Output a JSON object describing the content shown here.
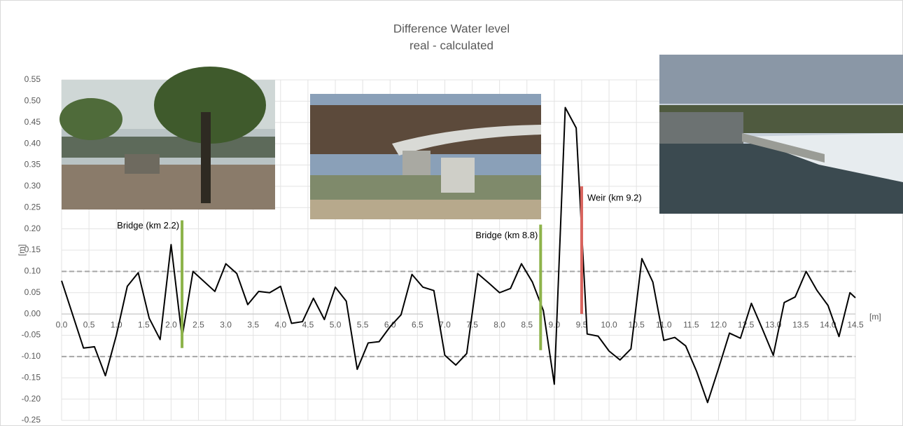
{
  "chart_data": {
    "type": "line",
    "title": "Difference Water level",
    "subtitle": "real - calculated",
    "y_label": "[m]",
    "x_label": "[m]",
    "xlim": [
      0,
      14.5
    ],
    "ylim": [
      -0.25,
      0.55
    ],
    "grid": true,
    "xticks": [
      {
        "value": 0,
        "label": "0.0"
      },
      0.5,
      {
        "value": 1,
        "label": "1.0"
      },
      1.5,
      {
        "value": 2,
        "label": "2.0"
      },
      2.5,
      {
        "value": 3,
        "label": "3.0"
      },
      3.5,
      {
        "value": 4,
        "label": "4.0"
      },
      4.5,
      {
        "value": 5,
        "label": "5.0"
      },
      5.5,
      {
        "value": 6,
        "label": "6.0"
      },
      6.5,
      {
        "value": 7,
        "label": "7.0"
      },
      7.5,
      {
        "value": 8,
        "label": "8.0"
      },
      8.5,
      {
        "value": 9,
        "label": "9.0"
      },
      9.5,
      {
        "value": 10,
        "label": "10.0"
      },
      10.5,
      {
        "value": 11,
        "label": "11.0"
      },
      11.5,
      {
        "value": 12,
        "label": "12.0"
      },
      12.5,
      {
        "value": 13,
        "label": "13.0"
      },
      13.5,
      {
        "value": 14,
        "label": "14.0"
      },
      14.5
    ],
    "yticks": [
      0.55,
      {
        "value": 0.5,
        "label": "0.50"
      },
      0.45,
      {
        "value": 0.4,
        "label": "0.40"
      },
      0.35,
      {
        "value": 0.3,
        "label": "0.30"
      },
      0.25,
      {
        "value": 0.2,
        "label": "0.20"
      },
      0.15,
      {
        "value": 0.1,
        "label": "0.10"
      },
      0.05,
      {
        "value": 0,
        "label": "0.00"
      },
      -0.05,
      {
        "value": -0.1,
        "label": "-0.10"
      },
      -0.15,
      {
        "value": -0.2,
        "label": "-0.20"
      },
      -0.25
    ],
    "reference_lines": [
      0.1,
      -0.1
    ],
    "series": [
      {
        "color": "#000000",
        "x": [
          0,
          0.4,
          0.6,
          0.8,
          1.0,
          1.2,
          1.4,
          1.6,
          1.8,
          2.0,
          2.2,
          2.4,
          2.8,
          3.0,
          3.2,
          3.4,
          3.6,
          3.8,
          4.0,
          4.2,
          4.4,
          4.6,
          4.8,
          5.0,
          5.2,
          5.4,
          5.6,
          5.8,
          6.0,
          6.2,
          6.4,
          6.6,
          6.8,
          7.0,
          7.2,
          7.4,
          7.6,
          7.8,
          8.0,
          8.2,
          8.4,
          8.6,
          8.8,
          9.0,
          9.2,
          9.4,
          9.6,
          9.8,
          10.0,
          10.2,
          10.4,
          10.6,
          10.8,
          11.0,
          11.2,
          11.4,
          11.6,
          11.8,
          12.0,
          12.2,
          12.4,
          12.6,
          12.8,
          13.0,
          13.2,
          13.4,
          13.6,
          13.8,
          14.0,
          14.2,
          14.4,
          14.5
        ],
        "values": [
          0.078,
          -0.08,
          -0.077,
          -0.145,
          -0.05,
          0.065,
          0.097,
          -0.01,
          -0.06,
          0.163,
          -0.055,
          0.1,
          0.053,
          0.118,
          0.095,
          0.022,
          0.053,
          0.05,
          0.065,
          -0.022,
          -0.018,
          0.037,
          -0.013,
          0.063,
          0.03,
          -0.13,
          -0.068,
          -0.065,
          -0.03,
          -0.002,
          0.093,
          0.063,
          0.055,
          -0.097,
          -0.12,
          -0.093,
          0.095,
          0.073,
          0.05,
          0.06,
          0.118,
          0.075,
          0.008,
          -0.165,
          0.485,
          0.437,
          -0.047,
          -0.052,
          -0.087,
          -0.108,
          -0.082,
          0.13,
          0.075,
          -0.062,
          -0.055,
          -0.075,
          -0.135,
          -0.208,
          -0.128,
          -0.045,
          -0.057,
          0.025,
          -0.035,
          -0.097,
          0.027,
          0.04,
          0.1,
          0.055,
          0.02,
          -0.053,
          0.05,
          0.038
        ]
      }
    ],
    "markers": [
      {
        "label": "Bridge (km 2.2)",
        "x": 2.2,
        "ymin": -0.08,
        "ymax": 0.22,
        "color": "#8db34a"
      },
      {
        "label": "Bridge (km 8.8)",
        "x": 8.75,
        "ymin": -0.085,
        "ymax": 0.21,
        "color": "#8db34a"
      },
      {
        "label": "Weir (km 9.2)",
        "x": 9.5,
        "ymin": 0,
        "ymax": 0.3,
        "color": "#d9645e"
      }
    ]
  }
}
